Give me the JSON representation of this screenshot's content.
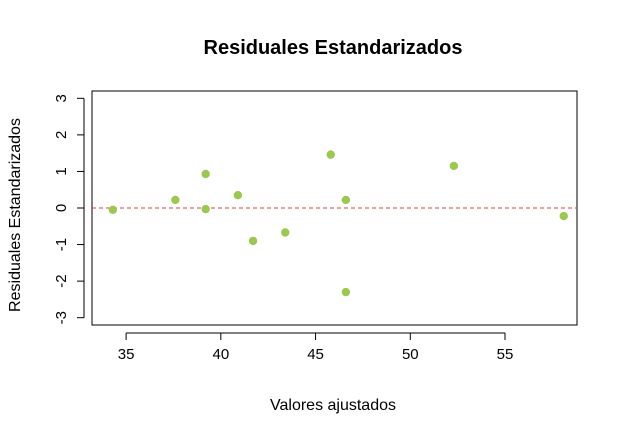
{
  "chart_data": {
    "type": "scatter",
    "title": "Residuales Estandarizados",
    "xlabel": "Valores ajustados",
    "ylabel": "Residuales Estandarizados",
    "xlim": [
      33.2,
      58.8
    ],
    "ylim": [
      -3.2,
      3.2
    ],
    "x_ticks": [
      35,
      40,
      45,
      50,
      55
    ],
    "y_ticks": [
      -3,
      -2,
      -1,
      0,
      1,
      2,
      3
    ],
    "grid": false,
    "reference_line": {
      "y": 0,
      "style": "dashed",
      "color": "#e03c3c"
    },
    "point_color": "#9bc94f",
    "points": [
      {
        "x": 34.3,
        "y": -0.05
      },
      {
        "x": 37.6,
        "y": 0.22
      },
      {
        "x": 39.2,
        "y": 0.93
      },
      {
        "x": 39.2,
        "y": -0.03
      },
      {
        "x": 40.9,
        "y": 0.35
      },
      {
        "x": 41.7,
        "y": -0.9
      },
      {
        "x": 43.4,
        "y": -0.67
      },
      {
        "x": 45.8,
        "y": 1.46
      },
      {
        "x": 46.6,
        "y": 0.22
      },
      {
        "x": 46.6,
        "y": -2.3
      },
      {
        "x": 52.3,
        "y": 1.15
      },
      {
        "x": 58.1,
        "y": -0.22
      }
    ]
  }
}
